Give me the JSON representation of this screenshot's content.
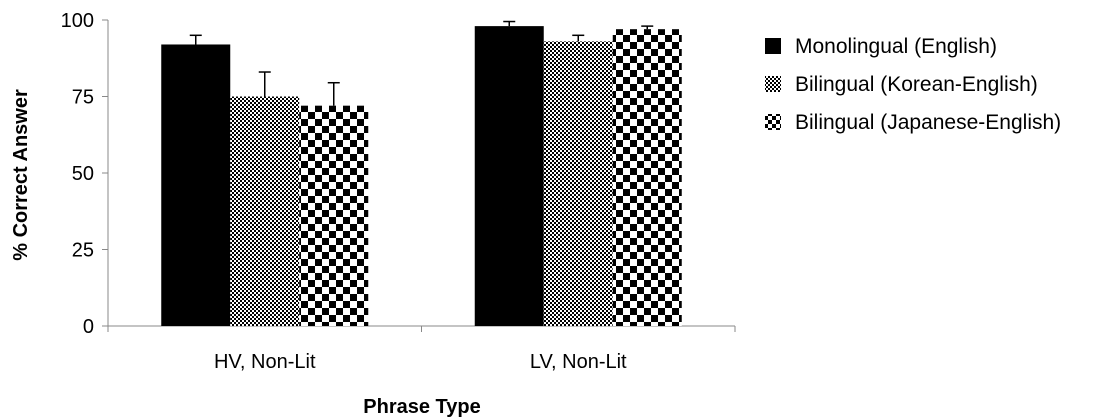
{
  "chart_data": {
    "type": "bar",
    "categories": [
      "HV, Non-Lit",
      "LV, Non-Lit"
    ],
    "series": [
      {
        "name": "Monolingual (English)",
        "values": [
          92,
          98
        ],
        "errors": [
          3,
          1.5
        ],
        "pattern": "solid"
      },
      {
        "name": "Bilingual (Korean-English)",
        "values": [
          75,
          93
        ],
        "errors": [
          8,
          2
        ],
        "pattern": "fine-check"
      },
      {
        "name": "Bilingual (Japanese-English)",
        "values": [
          72,
          97
        ],
        "errors": [
          7.5,
          1
        ],
        "pattern": "coarse-check"
      }
    ],
    "xlabel": "Phrase Type",
    "ylabel": "% Correct Answer",
    "ylim": [
      0,
      100
    ],
    "yticks": [
      0,
      25,
      50,
      75,
      100
    ],
    "ytick_labels": [
      "0",
      "25",
      "50",
      "75",
      "100"
    ],
    "grid": false,
    "legend_position": "right",
    "colors": {
      "bar": "#000000",
      "background": "#ffffff",
      "axis": "#888888",
      "text": "#000000"
    }
  }
}
